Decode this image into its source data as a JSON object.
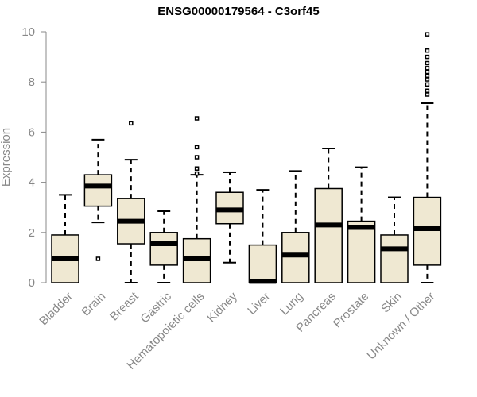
{
  "chart_data": {
    "type": "boxplot",
    "title": "ENSG00000179564 - C3orf45",
    "xlabel": "",
    "ylabel": "Expression",
    "ylim": [
      0,
      10
    ],
    "yticks": [
      0,
      2,
      4,
      6,
      8,
      10
    ],
    "grid": false,
    "legend": "none",
    "box_fill": "#efe8d2",
    "median_color": "#000000",
    "categories": [
      "Bladder",
      "Brain",
      "Breast",
      "Gastric",
      "Hematopoietic cells",
      "Kidney",
      "Liver",
      "Lung",
      "Pancreas",
      "Prostate",
      "Skin",
      "Unknown / Other"
    ],
    "boxes": [
      {
        "category": "Bladder",
        "whisker_low": 0.0,
        "q1": 0.0,
        "median": 0.95,
        "q3": 1.9,
        "whisker_high": 3.5,
        "outliers": []
      },
      {
        "category": "Brain",
        "whisker_low": 2.4,
        "q1": 3.05,
        "median": 3.85,
        "q3": 4.3,
        "whisker_high": 5.7,
        "outliers": [
          0.95
        ]
      },
      {
        "category": "Breast",
        "whisker_low": 0.0,
        "q1": 1.55,
        "median": 2.45,
        "q3": 3.35,
        "whisker_high": 4.9,
        "outliers": [
          6.35
        ]
      },
      {
        "category": "Gastric",
        "whisker_low": 0.0,
        "q1": 0.7,
        "median": 1.55,
        "q3": 2.0,
        "whisker_high": 2.85,
        "outliers": []
      },
      {
        "category": "Hematopoietic cells",
        "whisker_low": 0.0,
        "q1": 0.0,
        "median": 0.95,
        "q3": 1.75,
        "whisker_high": 4.3,
        "outliers": [
          4.35,
          4.55,
          5.0,
          5.4,
          6.55
        ]
      },
      {
        "category": "Kidney",
        "whisker_low": 0.8,
        "q1": 2.35,
        "median": 2.9,
        "q3": 3.6,
        "whisker_high": 4.4,
        "outliers": []
      },
      {
        "category": "Liver",
        "whisker_low": 0.0,
        "q1": 0.0,
        "median": 0.05,
        "q3": 1.5,
        "whisker_high": 3.7,
        "outliers": []
      },
      {
        "category": "Lung",
        "whisker_low": 0.0,
        "q1": 0.0,
        "median": 1.1,
        "q3": 2.0,
        "whisker_high": 4.45,
        "outliers": []
      },
      {
        "category": "Pancreas",
        "whisker_low": 0.0,
        "q1": 0.0,
        "median": 2.3,
        "q3": 3.75,
        "whisker_high": 5.35,
        "outliers": []
      },
      {
        "category": "Prostate",
        "whisker_low": 0.0,
        "q1": 0.0,
        "median": 2.2,
        "q3": 2.45,
        "whisker_high": 4.6,
        "outliers": []
      },
      {
        "category": "Skin",
        "whisker_low": 0.0,
        "q1": 0.0,
        "median": 1.35,
        "q3": 1.9,
        "whisker_high": 3.4,
        "outliers": []
      },
      {
        "category": "Unknown / Other",
        "whisker_low": 0.0,
        "q1": 0.7,
        "median": 2.15,
        "q3": 3.4,
        "whisker_high": 7.15,
        "outliers": [
          7.5,
          7.65,
          7.9,
          8.1,
          8.25,
          8.4,
          8.55,
          8.75,
          9.0,
          9.25,
          9.9
        ]
      }
    ]
  }
}
